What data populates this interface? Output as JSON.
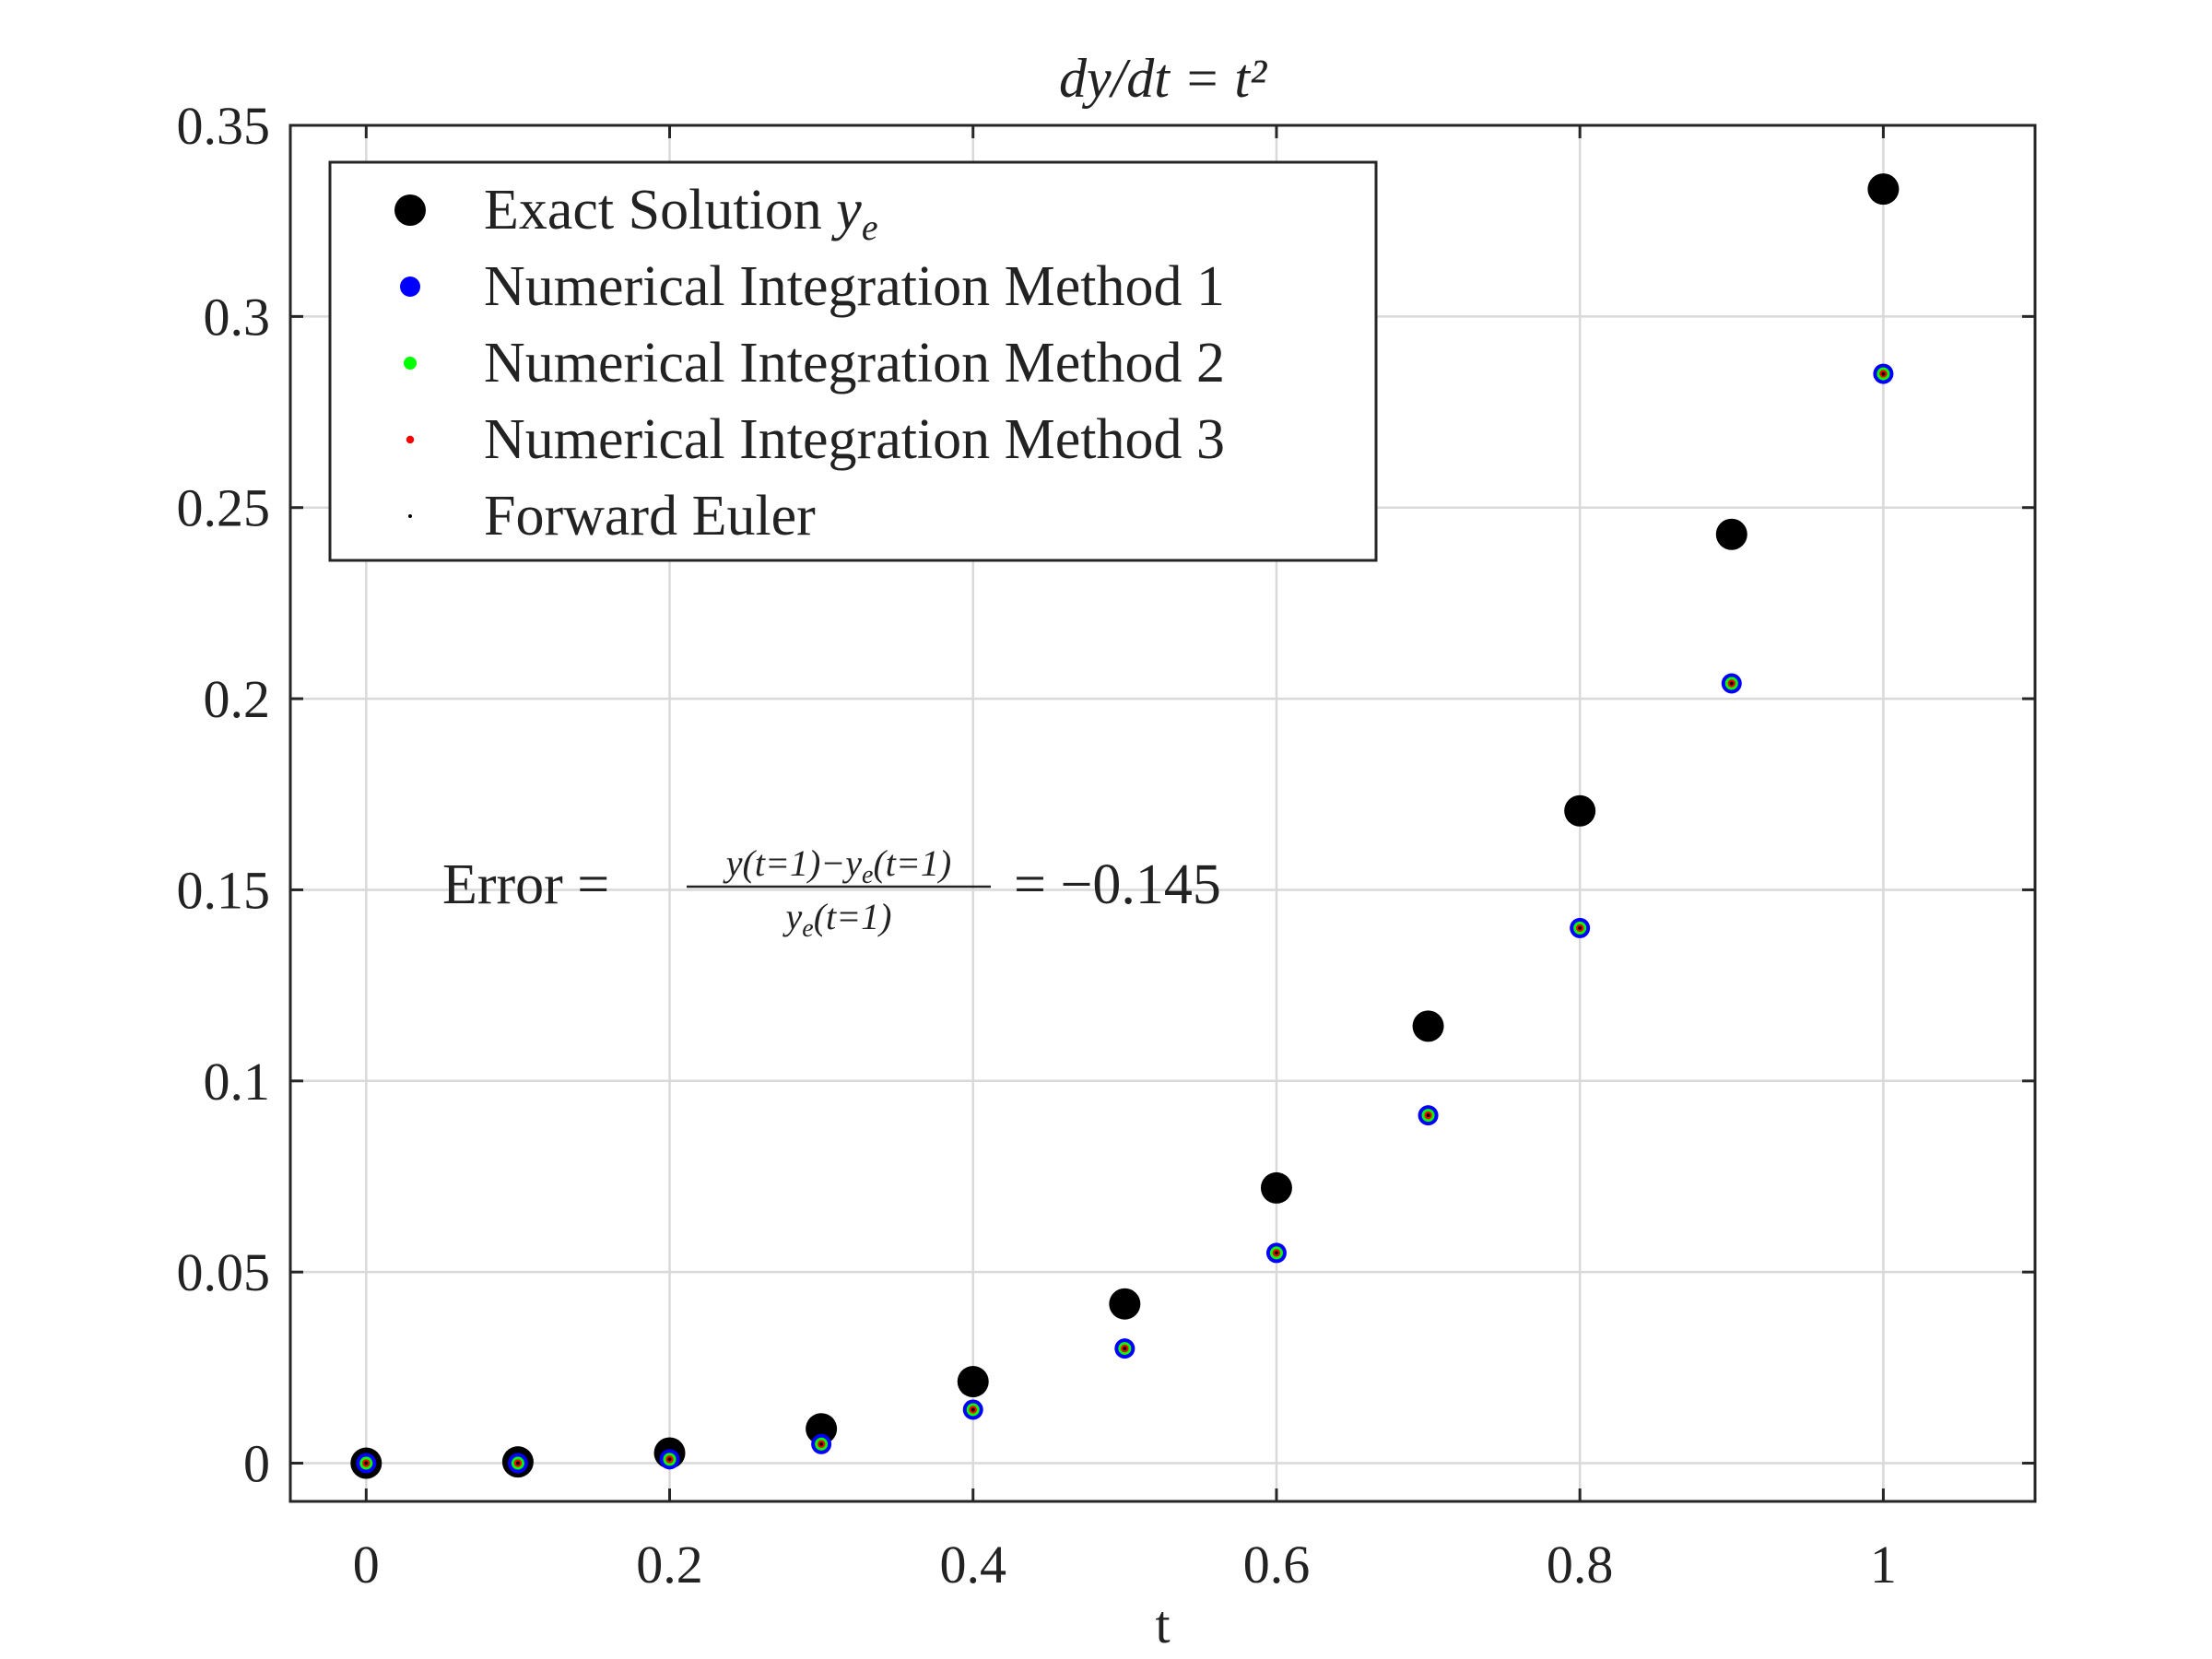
{
  "chart_data": {
    "type": "scatter",
    "title": "dy/dt = t²",
    "xlabel": "t",
    "ylabel": "",
    "xlim": [
      -0.05,
      1.1
    ],
    "ylim": [
      -0.01,
      0.35
    ],
    "xticks": [
      0,
      0.2,
      0.4,
      0.6,
      0.8,
      1
    ],
    "xtick_labels": [
      "0",
      "0.2",
      "0.4",
      "0.6",
      "0.8",
      "1"
    ],
    "yticks": [
      0,
      0.05,
      0.1,
      0.15,
      0.2,
      0.25,
      0.3,
      0.35
    ],
    "ytick_labels": [
      "0",
      "0.05",
      "0.1",
      "0.15",
      "0.2",
      "0.25",
      "0.3",
      "0.35"
    ],
    "grid": true,
    "legend_position": "top-left",
    "x": [
      0,
      0.1,
      0.2,
      0.3,
      0.4,
      0.5,
      0.6,
      0.7,
      0.8,
      0.9,
      1.0
    ],
    "series": [
      {
        "name": "Exact Solution",
        "name_subscript_label": "y",
        "name_subscript": "e",
        "color": "#000000",
        "values": [
          0,
          0.000333,
          0.002667,
          0.009,
          0.021333,
          0.041667,
          0.072,
          0.114333,
          0.170667,
          0.243,
          0.333333
        ]
      },
      {
        "name": "Numerical Integration Method 1",
        "color": "#0000ff",
        "values": [
          0,
          0,
          0.001,
          0.005,
          0.014,
          0.03,
          0.055,
          0.091,
          0.14,
          0.204,
          0.285
        ]
      },
      {
        "name": "Numerical Integration Method 2",
        "color": "#00ff00",
        "values": [
          0,
          0,
          0.001,
          0.005,
          0.014,
          0.03,
          0.055,
          0.091,
          0.14,
          0.204,
          0.285
        ]
      },
      {
        "name": "Numerical Integration Method 3",
        "color": "#ff0000",
        "values": [
          0,
          0,
          0.001,
          0.005,
          0.014,
          0.03,
          0.055,
          0.091,
          0.14,
          0.204,
          0.285
        ]
      },
      {
        "name": "Forward Euler",
        "color": "#000000",
        "values": [
          0,
          0,
          0.001,
          0.005,
          0.014,
          0.03,
          0.055,
          0.091,
          0.14,
          0.204,
          0.285
        ]
      }
    ],
    "annotation": {
      "prefix": "Error =",
      "numerator": "y(t=1)−y",
      "numerator_sub": "e",
      "numerator_tail": "(t=1)",
      "denominator": "y",
      "denominator_sub": "e",
      "denominator_tail": "(t=1)",
      "suffix": "= −0.145"
    }
  }
}
